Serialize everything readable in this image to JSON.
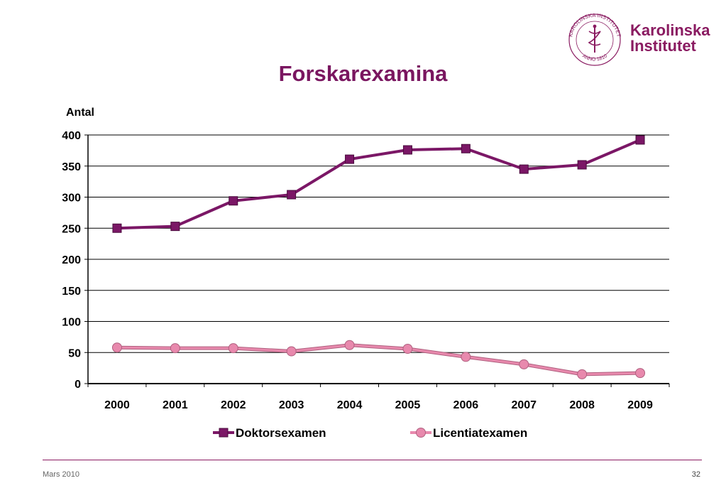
{
  "logo": {
    "line1": "Karolinska",
    "line2": "Institutet",
    "seal_text": "KAROLINSKA INSTITUTET",
    "seal_year": "ANNO 1810"
  },
  "slide": {
    "title": "Forskarexamina",
    "footer_left": "Mars 2010",
    "page_number": "32"
  },
  "colors": {
    "brand": "#8a1b61",
    "series1": "#7b1766",
    "series2": "#e889ad"
  },
  "chart_data": {
    "type": "line",
    "title": "",
    "xlabel": "",
    "ylabel": "Antal",
    "categories": [
      "2000",
      "2001",
      "2002",
      "2003",
      "2004",
      "2005",
      "2006",
      "2007",
      "2008",
      "2009"
    ],
    "ylim": [
      0,
      400
    ],
    "yticks": [
      0,
      50,
      100,
      150,
      200,
      250,
      300,
      350,
      400
    ],
    "grid": true,
    "legend": "bottom",
    "series": [
      {
        "name": "Doktorsexamen",
        "marker": "square",
        "color": "#7b1766",
        "values": [
          250,
          253,
          294,
          304,
          361,
          376,
          378,
          345,
          352,
          392
        ]
      },
      {
        "name": "Licentiatexamen",
        "marker": "circle",
        "color": "#e889ad",
        "values": [
          58,
          57,
          57,
          52,
          62,
          56,
          43,
          31,
          15,
          17
        ]
      }
    ]
  }
}
